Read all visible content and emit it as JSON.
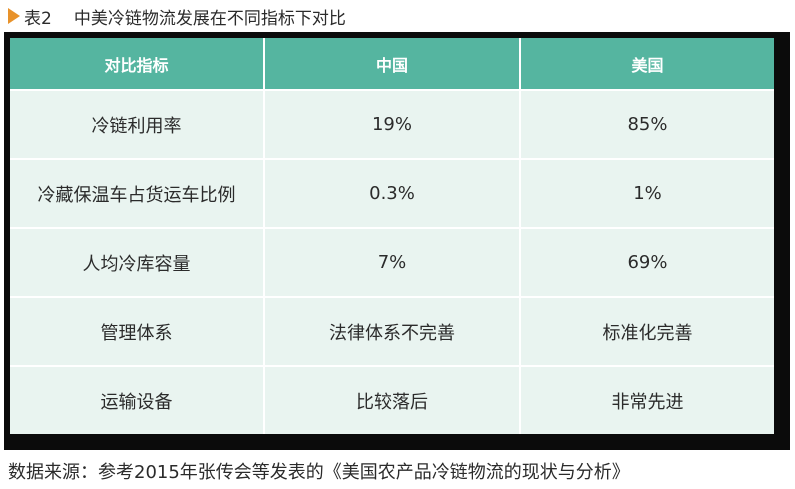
{
  "caption": {
    "number": "表2",
    "title": "中美冷链物流发展在不同指标下对比"
  },
  "table": {
    "headers": [
      "对比指标",
      "中国",
      "美国"
    ],
    "rows": [
      [
        "冷链利用率",
        "19%",
        "85%"
      ],
      [
        "冷藏保温车占货运车比例",
        "0.3%",
        "1%"
      ],
      [
        "人均冷库容量",
        "7%",
        "69%"
      ],
      [
        "管理体系",
        "法律体系不完善",
        "标准化完善"
      ],
      [
        "运输设备",
        "比较落后",
        "非常先进"
      ]
    ]
  },
  "source": "数据来源：参考2015年张传会等发表的《美国农产品冷链物流的现状与分析》",
  "colors": {
    "header_bg": "#55b5a0",
    "cell_bg": "#e9f4f0",
    "caption_marker": "#e8922a",
    "frame": "#0b0b0b"
  }
}
